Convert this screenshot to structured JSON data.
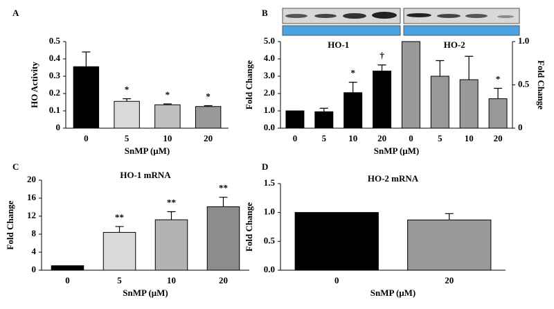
{
  "chart_data": [
    {
      "type": "bar",
      "panel": "A",
      "ylabel": "HO Activity",
      "xlabel": "SnMP (μM)",
      "categories": [
        "0",
        "5",
        "10",
        "20"
      ],
      "series": [
        {
          "colors": [
            "#000000",
            "#d9d9d9",
            "#bfbfbf",
            "#999999"
          ],
          "values": [
            0.355,
            0.155,
            0.135,
            0.125
          ],
          "errors": [
            0.085,
            0.015,
            0.005,
            0.005
          ]
        }
      ],
      "significance": [
        null,
        "*",
        "*",
        "*"
      ],
      "ylim": [
        0,
        0.5
      ],
      "yticks": [
        0,
        0.1,
        0.2,
        0.3,
        0.4,
        0.5
      ]
    },
    {
      "type": "bar",
      "panel": "B",
      "ylabel": "Fold Change",
      "y2label": "Fold Change",
      "xlabel": "SnMP (μM)",
      "categories": [
        "0",
        "5",
        "10",
        "20",
        "0",
        "5",
        "10",
        "20"
      ],
      "series": [
        {
          "name": "HO-1",
          "color": "#000000",
          "values": [
            1.0,
            0.95,
            2.05,
            3.3,
            null,
            null,
            null,
            null
          ],
          "errors": [
            null,
            0.2,
            0.6,
            0.35,
            null,
            null,
            null,
            null
          ]
        },
        {
          "name": "HO-2",
          "axis": "y2",
          "color": "#999999",
          "values": [
            null,
            null,
            null,
            null,
            1.0,
            0.6,
            0.56,
            0.34
          ],
          "errors": [
            null,
            null,
            null,
            null,
            null,
            0.18,
            0.27,
            0.12
          ]
        }
      ],
      "significance": [
        null,
        null,
        "*",
        "†",
        null,
        null,
        null,
        "*"
      ],
      "ylim": [
        0,
        5
      ],
      "yticks": [
        {
          "value": 0,
          "label": "0.0"
        },
        {
          "value": 1,
          "label": "1.0"
        },
        {
          "value": 2,
          "label": "2.0"
        },
        {
          "value": 3,
          "label": "3.0"
        },
        {
          "value": 4,
          "label": "4.0"
        },
        {
          "value": 5,
          "label": "5.0"
        }
      ],
      "y2lim": [
        0,
        1
      ],
      "y2ticks": [
        0,
        0.5,
        {
          "value": 1,
          "label": "1.0"
        }
      ]
    },
    {
      "type": "bar",
      "panel": "C",
      "title": "HO-1 mRNA",
      "ylabel": "Fold Change",
      "xlabel": "SnMP (μM)",
      "categories": [
        "0",
        "5",
        "10",
        "20"
      ],
      "series": [
        {
          "colors": [
            "#000000",
            "#d9d9d9",
            "#b3b3b3",
            "#8c8c8c"
          ],
          "values": [
            1.0,
            8.4,
            11.2,
            14.1
          ],
          "errors": [
            null,
            1.3,
            1.8,
            2.1
          ]
        }
      ],
      "significance": [
        null,
        "**",
        "**",
        "**"
      ],
      "ylim": [
        0,
        20
      ],
      "yticks": [
        0,
        4,
        8,
        12,
        16,
        20
      ]
    },
    {
      "type": "bar",
      "panel": "D",
      "title": "HO-2 mRNA",
      "ylabel": "Fold Change",
      "xlabel": "SnMP (μM)",
      "categories": [
        "0",
        "20"
      ],
      "series": [
        {
          "colors": [
            "#000000",
            "#999999"
          ],
          "values": [
            1.0,
            0.87
          ],
          "errors": [
            null,
            0.11
          ]
        }
      ],
      "significance": [
        null,
        null
      ],
      "ylim": [
        0,
        1.5
      ],
      "yticks": [
        {
          "value": 0,
          "label": "0.0"
        },
        {
          "value": 0.5,
          "label": "0.5"
        },
        {
          "value": 1,
          "label": "1.0"
        },
        {
          "value": 1.5,
          "label": "1.5"
        }
      ]
    }
  ]
}
